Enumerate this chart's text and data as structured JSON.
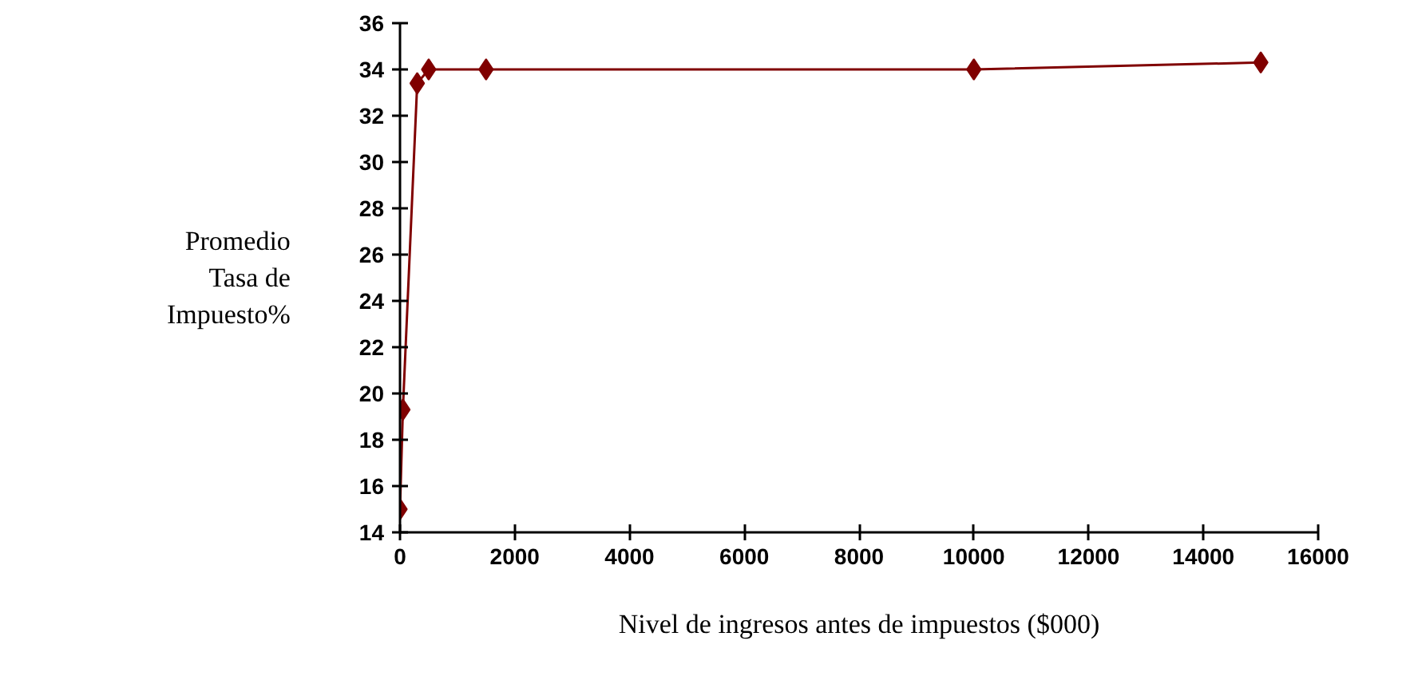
{
  "chart_data": {
    "type": "line",
    "xlabel": "Nivel de ingresos antes de impuestos ($000)",
    "ylabel": "Promedio\nTasa de\nImpuesto%",
    "x": [
      0,
      50,
      300,
      500,
      1500,
      10000,
      15000
    ],
    "series": [
      {
        "color": "#800000",
        "values": [
          15,
          19.3,
          33.4,
          34,
          34,
          34,
          34.3
        ]
      }
    ],
    "xlim": [
      0,
      16000
    ],
    "xticks": [
      0,
      2000,
      4000,
      6000,
      8000,
      10000,
      12000,
      14000,
      16000
    ],
    "ylim": [
      14,
      36
    ],
    "yticks": [
      14,
      16,
      18,
      20,
      22,
      24,
      26,
      28,
      30,
      32,
      34,
      36
    ],
    "grid": false,
    "marker": "diamond",
    "line_style": "solid"
  }
}
